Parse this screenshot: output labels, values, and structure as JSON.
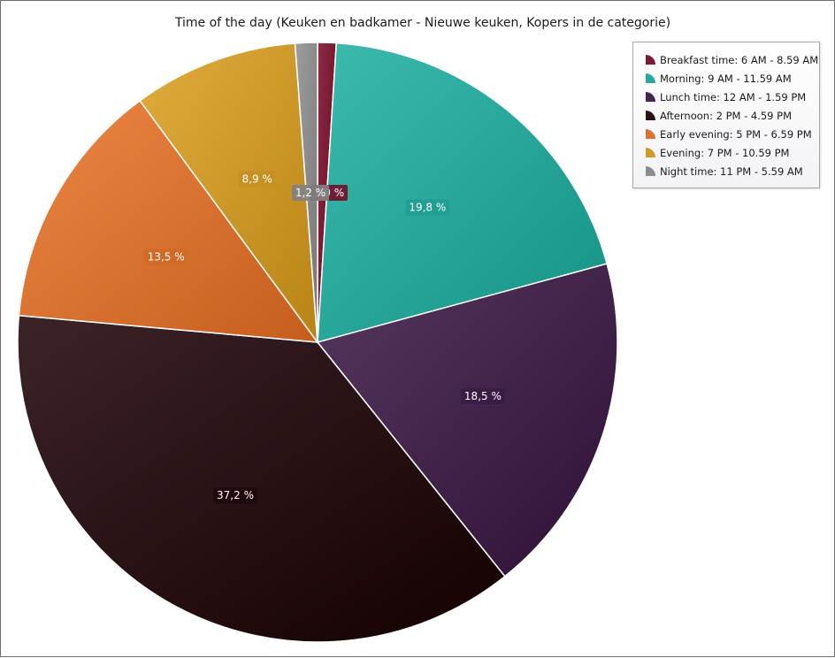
{
  "chart_data": {
    "type": "pie",
    "title": "Time of the day (Keuken en badkamer - Nieuwe keuken, Kopers in de categorie)",
    "legend_position": "top-right",
    "slices": [
      {
        "label": "Breakfast time: 6 AM - 8.59 AM",
        "value": 1.0,
        "display": "1,0 %",
        "color": "#7a1b34"
      },
      {
        "label": "Morning: 9 AM - 11.59 AM",
        "value": 19.8,
        "display": "19,8 %",
        "color": "#2aa89b"
      },
      {
        "label": "Lunch time: 12 AM - 1.59 PM",
        "value": 18.5,
        "display": "18,5 %",
        "color": "#44264d"
      },
      {
        "label": "Afternoon: 2 PM - 4.59 PM",
        "value": 37.2,
        "display": "37,2 %",
        "color": "#2a1116"
      },
      {
        "label": "Early evening: 5 PM - 6.59 PM",
        "value": 13.5,
        "display": "13,5 %",
        "color": "#db7432"
      },
      {
        "label": "Evening: 7 PM - 10.59 PM",
        "value": 8.9,
        "display": "8,9 %",
        "color": "#cf9a2c"
      },
      {
        "label": "Night time: 11 PM - 5.59 AM",
        "value": 1.2,
        "display": "1,2 %",
        "color": "#8c8c8c"
      }
    ]
  }
}
